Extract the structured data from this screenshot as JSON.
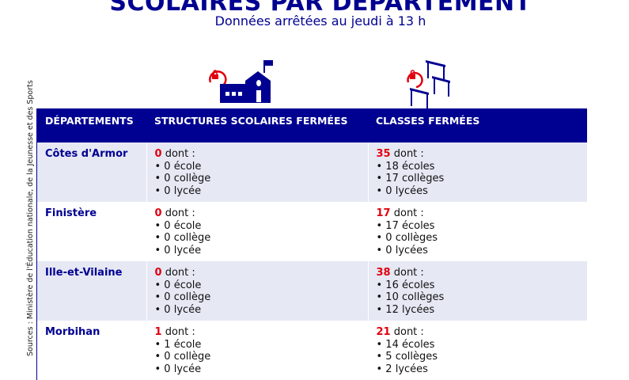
{
  "header": {
    "title": "SCOLAIRES PAR DÉPARTEMENT",
    "subtitle": "Données arrêtées au jeudi à 13 h"
  },
  "source": "Sources : Ministère de l'Éducation nationale, de la Jeunesse et des Sports",
  "icons": {
    "structures": "school-building-lock-icon",
    "classes": "desks-lock-icon"
  },
  "colors": {
    "navy": "#000091",
    "red": "#e1000f",
    "row_alt": "#e6e8f4"
  },
  "table": {
    "headers": [
      "DÉPARTEMENTS",
      "STRUCTURES SCOLAIRES FERMÉES",
      "CLASSES FERMÉES"
    ],
    "dont": "dont :",
    "rows": [
      {
        "dept": "Côtes d'Armor",
        "structures": {
          "total": "0",
          "items": [
            "• 0 école",
            "• 0 collège",
            "• 0 lycée"
          ]
        },
        "classes": {
          "total": "35",
          "items": [
            "• 18 écoles",
            "• 17 collèges",
            "• 0 lycées"
          ]
        }
      },
      {
        "dept": "Finistère",
        "structures": {
          "total": "0",
          "items": [
            "• 0 école",
            "• 0 collège",
            "• 0 lycée"
          ]
        },
        "classes": {
          "total": "17",
          "items": [
            "• 17 écoles",
            "• 0 collèges",
            "• 0 lycées"
          ]
        }
      },
      {
        "dept": "Ille-et-Vilaine",
        "structures": {
          "total": "0",
          "items": [
            "• 0 école",
            "• 0 collège",
            "• 0 lycée"
          ]
        },
        "classes": {
          "total": "38",
          "items": [
            "• 16 écoles",
            "• 10 collèges",
            "• 12 lycées"
          ]
        }
      },
      {
        "dept": "Morbihan",
        "structures": {
          "total": "1",
          "items": [
            "• 1 école",
            "• 0 collège",
            "• 0 lycée"
          ]
        },
        "classes": {
          "total": "21",
          "items": [
            "• 14 écoles",
            "• 5 collèges",
            "• 2 lycées"
          ]
        }
      }
    ]
  }
}
